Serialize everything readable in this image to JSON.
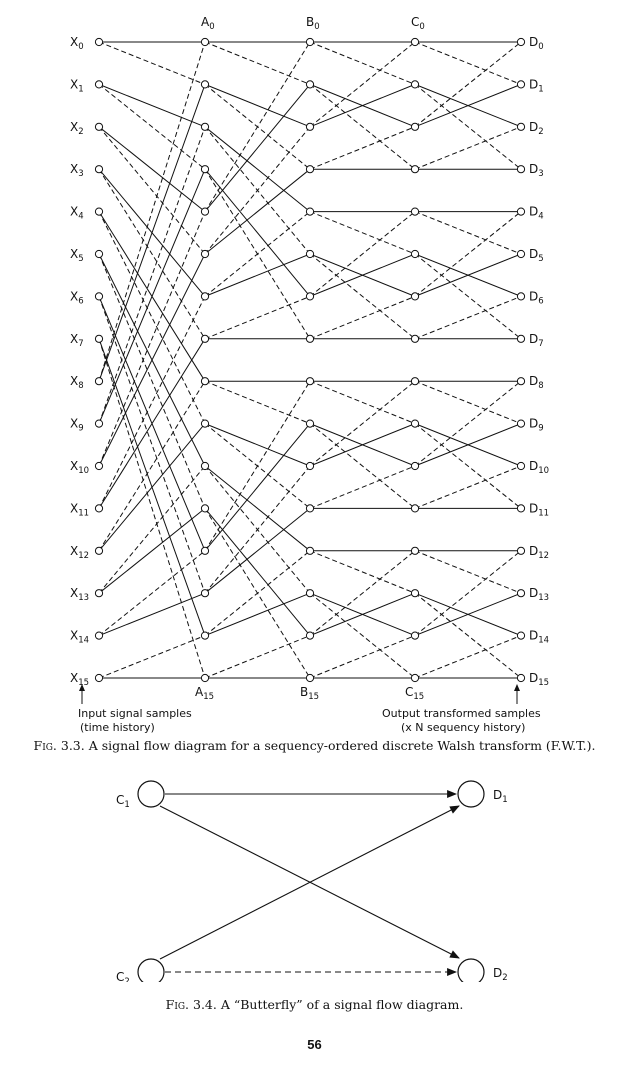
{
  "figure_3_3": {
    "columns": [
      {
        "key": "X",
        "base": "X",
        "labels": [
          "0",
          "1",
          "2",
          "3",
          "4",
          "5",
          "6",
          "7",
          "8",
          "9",
          "10",
          "11",
          "12",
          "13",
          "14",
          "15"
        ],
        "shown": "all"
      },
      {
        "key": "A",
        "base": "A",
        "labels": [
          "0",
          "15"
        ],
        "shown": "ends"
      },
      {
        "key": "B",
        "base": "B",
        "labels": [
          "0",
          "15"
        ],
        "shown": "ends"
      },
      {
        "key": "C",
        "base": "C",
        "labels": [
          "0",
          "15"
        ],
        "shown": "ends"
      },
      {
        "key": "D",
        "base": "D",
        "labels": [
          "0",
          "1",
          "2",
          "3",
          "4",
          "5",
          "6",
          "7",
          "8",
          "9",
          "10",
          "11",
          "12",
          "13",
          "14",
          "15"
        ],
        "shown": "all"
      }
    ],
    "edges_X_A": {
      "solid": [
        [
          0,
          0
        ],
        [
          1,
          2
        ],
        [
          2,
          4
        ],
        [
          3,
          6
        ],
        [
          4,
          8
        ],
        [
          5,
          10
        ],
        [
          6,
          12
        ],
        [
          7,
          14
        ],
        [
          8,
          1
        ],
        [
          9,
          3
        ],
        [
          10,
          5
        ],
        [
          11,
          7
        ],
        [
          12,
          9
        ],
        [
          13,
          11
        ],
        [
          14,
          13
        ],
        [
          15,
          15
        ]
      ],
      "dashed": [
        [
          0,
          1
        ],
        [
          1,
          3
        ],
        [
          2,
          5
        ],
        [
          3,
          7
        ],
        [
          4,
          9
        ],
        [
          5,
          11
        ],
        [
          6,
          13
        ],
        [
          7,
          15
        ],
        [
          8,
          0
        ],
        [
          9,
          2
        ],
        [
          10,
          4
        ],
        [
          11,
          6
        ],
        [
          12,
          8
        ],
        [
          13,
          10
        ],
        [
          14,
          12
        ],
        [
          15,
          14
        ]
      ]
    },
    "edges_A_B": {
      "solid": [
        [
          0,
          0
        ],
        [
          1,
          2
        ],
        [
          2,
          4
        ],
        [
          3,
          6
        ],
        [
          4,
          1
        ],
        [
          5,
          3
        ],
        [
          6,
          5
        ],
        [
          7,
          7
        ],
        [
          8,
          8
        ],
        [
          9,
          10
        ],
        [
          10,
          12
        ],
        [
          11,
          14
        ],
        [
          12,
          9
        ],
        [
          13,
          11
        ],
        [
          14,
          13
        ],
        [
          15,
          15
        ]
      ],
      "dashed": [
        [
          0,
          1
        ],
        [
          1,
          3
        ],
        [
          2,
          5
        ],
        [
          3,
          7
        ],
        [
          4,
          0
        ],
        [
          5,
          2
        ],
        [
          6,
          4
        ],
        [
          7,
          6
        ],
        [
          8,
          9
        ],
        [
          9,
          11
        ],
        [
          10,
          13
        ],
        [
          11,
          15
        ],
        [
          12,
          8
        ],
        [
          13,
          10
        ],
        [
          14,
          12
        ],
        [
          15,
          14
        ]
      ]
    },
    "edges_B_C": {
      "solid": [
        [
          0,
          0
        ],
        [
          1,
          2
        ],
        [
          2,
          1
        ],
        [
          3,
          3
        ],
        [
          4,
          4
        ],
        [
          5,
          6
        ],
        [
          6,
          5
        ],
        [
          7,
          7
        ],
        [
          8,
          8
        ],
        [
          9,
          10
        ],
        [
          10,
          9
        ],
        [
          11,
          11
        ],
        [
          12,
          12
        ],
        [
          13,
          14
        ],
        [
          14,
          13
        ],
        [
          15,
          15
        ]
      ],
      "dashed": [
        [
          0,
          1
        ],
        [
          1,
          3
        ],
        [
          2,
          0
        ],
        [
          3,
          2
        ],
        [
          4,
          5
        ],
        [
          5,
          7
        ],
        [
          6,
          4
        ],
        [
          7,
          6
        ],
        [
          8,
          9
        ],
        [
          9,
          11
        ],
        [
          10,
          8
        ],
        [
          11,
          10
        ],
        [
          12,
          13
        ],
        [
          13,
          15
        ],
        [
          14,
          12
        ],
        [
          15,
          14
        ]
      ]
    },
    "edges_C_D": {
      "solid": [
        [
          0,
          0
        ],
        [
          1,
          2
        ],
        [
          2,
          1
        ],
        [
          3,
          3
        ],
        [
          4,
          4
        ],
        [
          5,
          6
        ],
        [
          6,
          5
        ],
        [
          7,
          7
        ],
        [
          8,
          8
        ],
        [
          9,
          10
        ],
        [
          10,
          9
        ],
        [
          11,
          11
        ],
        [
          12,
          12
        ],
        [
          13,
          14
        ],
        [
          14,
          13
        ],
        [
          15,
          15
        ]
      ],
      "dashed": [
        [
          0,
          1
        ],
        [
          1,
          3
        ],
        [
          2,
          0
        ],
        [
          3,
          2
        ],
        [
          4,
          5
        ],
        [
          5,
          7
        ],
        [
          6,
          4
        ],
        [
          7,
          6
        ],
        [
          8,
          9
        ],
        [
          9,
          11
        ],
        [
          10,
          8
        ],
        [
          11,
          10
        ],
        [
          12,
          13
        ],
        [
          13,
          15
        ],
        [
          14,
          12
        ],
        [
          15,
          14
        ]
      ]
    },
    "input_note": [
      "Input signal samples",
      "(time history)"
    ],
    "output_note": [
      "Output transformed samples",
      "(x N sequency history)"
    ],
    "caption_prefix": "Fig. 3.3.",
    "caption_text": "A signal flow diagram for a sequency-ordered discrete Walsh transform (F.W.T.)."
  },
  "figure_3_4": {
    "nodes": [
      {
        "base": "C",
        "sub": "1"
      },
      {
        "base": "C",
        "sub": "2"
      },
      {
        "base": "D",
        "sub": "1"
      },
      {
        "base": "D",
        "sub": "2"
      }
    ],
    "caption_prefix": "Fig. 3.4.",
    "caption_text": "A “Butterfly” of a signal flow diagram."
  },
  "page_number": "56"
}
